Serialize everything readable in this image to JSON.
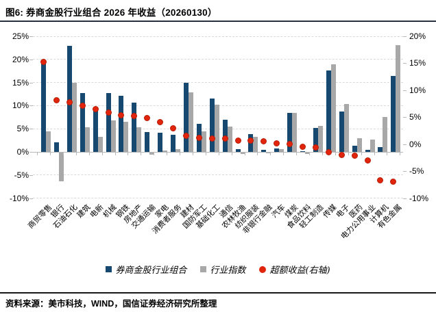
{
  "header": {
    "title": "图6: 券商金股行业组合 2026 年收益（20260130）"
  },
  "footer": {
    "source": "资料来源：美市科技，WIND，国信证券经济研究所整理"
  },
  "colors": {
    "portfolio_bar": "#17486f",
    "index_bar": "#a8a8a8",
    "excess_dot": "#e1250c",
    "gridline": "#d9d9d9",
    "rule": "#25303c"
  },
  "legend": [
    {
      "label": "券商金股行业组合",
      "marker": "square",
      "color": "#17486f"
    },
    {
      "label": "行业指数",
      "marker": "square",
      "color": "#a8a8a8"
    },
    {
      "label": "超额收益(右轴)",
      "marker": "circle",
      "color": "#e1250c"
    }
  ],
  "chart_data": {
    "type": "bar",
    "title": "券商金股行业组合 2026 年收益（20260130）",
    "categories": [
      "商贸零售",
      "银行",
      "石油石化",
      "建筑",
      "电新",
      "机械",
      "钢铁",
      "房地产",
      "交通运输",
      "家电",
      "消费者服务",
      "建材",
      "国防军工",
      "基础化工",
      "通信",
      "农林牧渔",
      "纺织服装",
      "非银行金融",
      "汽车",
      "煤炭",
      "食品饮料",
      "轻工制造",
      "传媒",
      "电子",
      "医药",
      "电力公用事业",
      "计算机",
      "有色金属"
    ],
    "series": [
      {
        "name": "券商金股行业组合",
        "type": "bar",
        "axis": "left",
        "color": "#17486f",
        "values": [
          19.3,
          2.1,
          22.9,
          12.8,
          9.3,
          12.8,
          12.1,
          10.7,
          4.3,
          4.2,
          3.7,
          15.0,
          6.0,
          11.5,
          6.9,
          0.6,
          3.8,
          0.5,
          0.8,
          8.5,
          0.1,
          5.2,
          17.6,
          8.8,
          1.3,
          0.5,
          1.1,
          16.4
        ]
      },
      {
        "name": "行业指数",
        "type": "bar",
        "axis": "left",
        "color": "#a8a8a8",
        "values": [
          4.4,
          -6.3,
          15.0,
          5.4,
          3.3,
          6.8,
          6.5,
          5.4,
          -0.6,
          0.3,
          0.6,
          12.9,
          4.5,
          10.2,
          5.5,
          -0.4,
          3.2,
          -0.3,
          0.6,
          8.4,
          -0.4,
          5.6,
          18.9,
          10.4,
          3.0,
          2.7,
          7.5,
          23.1
        ]
      },
      {
        "name": "超额收益(右轴)",
        "type": "scatter",
        "axis": "right",
        "color": "#e1250c",
        "values": [
          15.3,
          8.2,
          7.8,
          7.1,
          6.5,
          5.9,
          5.4,
          5.2,
          4.9,
          4.1,
          3.0,
          1.6,
          1.2,
          1.1,
          1.0,
          0.7,
          0.6,
          0.5,
          0.1,
          0.0,
          -0.5,
          -0.6,
          -1.5,
          -2.0,
          -2.1,
          -3.0,
          -6.7,
          -6.9
        ]
      }
    ],
    "left_axis": {
      "ticks": [
        "25%",
        "20%",
        "15%",
        "10%",
        "5%",
        "0%",
        "-5%",
        "-10%"
      ],
      "values": [
        25,
        20,
        15,
        10,
        5,
        0,
        -5,
        -10
      ],
      "min": -10,
      "max": 25
    },
    "right_axis": {
      "ticks": [
        "20%",
        "15%",
        "10%",
        "5%",
        "0%",
        "-5%",
        "-10%"
      ],
      "values": [
        20,
        15,
        10,
        5,
        0,
        -5,
        -10
      ],
      "min": -10,
      "max": 20
    },
    "grid": "horizontal-dashed",
    "legend_position": "bottom"
  }
}
